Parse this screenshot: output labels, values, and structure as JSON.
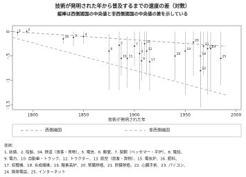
{
  "chart_data": {
    "type": "scatter",
    "title": "技術が発明された年から普及するまでの速度の差（対数）",
    "subtitle": "縦棒は西側諸国の中央値と非西側諸国の中央値の差を示している",
    "x_label": "技術が発明された年",
    "xlim": [
      1780,
      2005
    ],
    "xticks": [
      1800,
      1850,
      1900,
      1950,
      2000
    ],
    "ylim": [
      -1.6,
      0.12
    ],
    "yticks": [
      0,
      {
        "value": -0.5,
        "label": "-.5"
      },
      -1,
      -1.5
    ],
    "point_color": "#333333",
    "points": {
      "labels": [
        "1",
        "2",
        "34",
        "3",
        "4",
        "6",
        "5",
        "10",
        "11",
        "7",
        "8",
        "9",
        "15",
        "12",
        "17",
        "16",
        "19",
        "20",
        "18",
        "21",
        "22",
        "23",
        "24",
        "25"
      ],
      "x": [
        1785,
        1794,
        1830,
        1840,
        1850,
        1875,
        1885,
        1887,
        1893,
        1900,
        1905,
        1907,
        1910,
        1912,
        1915,
        1940,
        1950,
        1958,
        1965,
        1968,
        1965,
        1972,
        1975,
        1985
      ],
      "values": [
        -0.02,
        0.0,
        -0.15,
        -0.12,
        -0.1,
        -0.4,
        -0.28,
        -0.55,
        -0.55,
        -0.3,
        -0.45,
        -0.6,
        -0.25,
        -0.4,
        -0.62,
        -0.5,
        -0.4,
        -0.22,
        -0.5,
        -0.3,
        -0.8,
        -0.35,
        -0.35,
        -0.55
      ],
      "err_low": [
        -0.1,
        -0.05,
        -0.25,
        -0.3,
        -0.25,
        -1.2,
        -1.2,
        -0.9,
        -1.15,
        -0.7,
        -1.2,
        -1.0,
        -0.5,
        -0.9,
        -1.2,
        -1.0,
        -1.3,
        -0.9,
        -1.1,
        -0.9,
        -1.55,
        -1.3,
        -1.2,
        -1.1
      ],
      "err_high": [
        0.05,
        0.05,
        -0.05,
        0.0,
        0.0,
        -0.05,
        0.0,
        -0.2,
        -0.1,
        0.0,
        0.0,
        -0.2,
        0.0,
        0.0,
        -0.2,
        0.0,
        0.0,
        0.0,
        0.0,
        0.0,
        0.0,
        0.0,
        0.0,
        0.0
      ]
    },
    "series": [
      {
        "name": "西側諸国",
        "color": "#9aa8b8",
        "x": [
          1780,
          1990
        ],
        "values": [
          0.0,
          -0.3
        ]
      },
      {
        "name": "非西側諸国",
        "color": "#b5b5b5",
        "x": [
          1780,
          1990
        ],
        "values": [
          -0.12,
          -1.3
        ]
      }
    ],
    "footnote": [
      "技術：",
      "1. 紡績、2. 船舶、34. 鉄道（旅客・貨物）、5. 電信、6. 郵便、7. 製鋼（ベッセマー・平炉）、8. 電話、",
      "9. 電力、10. 自動車・トラック、12. トラクター、13. 航空（旅客・貨物）、15. 電気炉、16. 肥料、",
      "17. 収穫機、18. 合成繊維、19. 酸素高炉、20. 腎臓移植、21. 肝臓移植、22. 心臓手術、23. パソコン、",
      "24. 携帯電話、25. インターネット"
    ]
  }
}
